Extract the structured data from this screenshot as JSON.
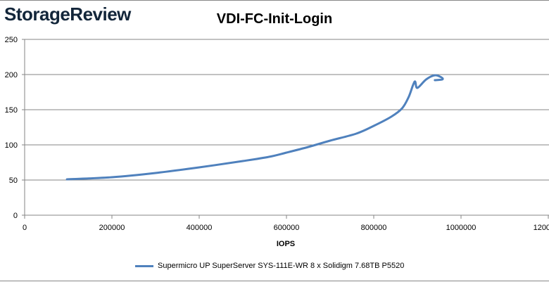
{
  "logo": "StorageReview",
  "chart_data": {
    "type": "line",
    "title": "VDI-FC-Init-Login",
    "xlabel": "IOPS",
    "ylabel": "",
    "xlim": [
      0,
      1200000
    ],
    "ylim": [
      0,
      250
    ],
    "xticks": [
      "0",
      "200000",
      "400000",
      "600000",
      "800000",
      "1000000",
      "1200000"
    ],
    "yticks": [
      "0",
      "50",
      "100",
      "150",
      "200",
      "250"
    ],
    "grid": true,
    "legend_position": "bottom",
    "series": [
      {
        "name": "Supermicro UP SuperServer SYS-111E-WR 8 x Solidigm 7.68TB P5520",
        "color": "#4f81bd",
        "x": [
          97000,
          200000,
          300000,
          400000,
          500000,
          560000,
          600000,
          650000,
          700000,
          760000,
          800000,
          840000,
          865000,
          880000,
          890000,
          895000,
          900000,
          920000,
          940000,
          955000,
          957000,
          940000
        ],
        "y": [
          51,
          54,
          60,
          68,
          77,
          83,
          89,
          97,
          106,
          116,
          127,
          140,
          152,
          168,
          185,
          190,
          181,
          193,
          199,
          196,
          193,
          192
        ]
      }
    ]
  }
}
